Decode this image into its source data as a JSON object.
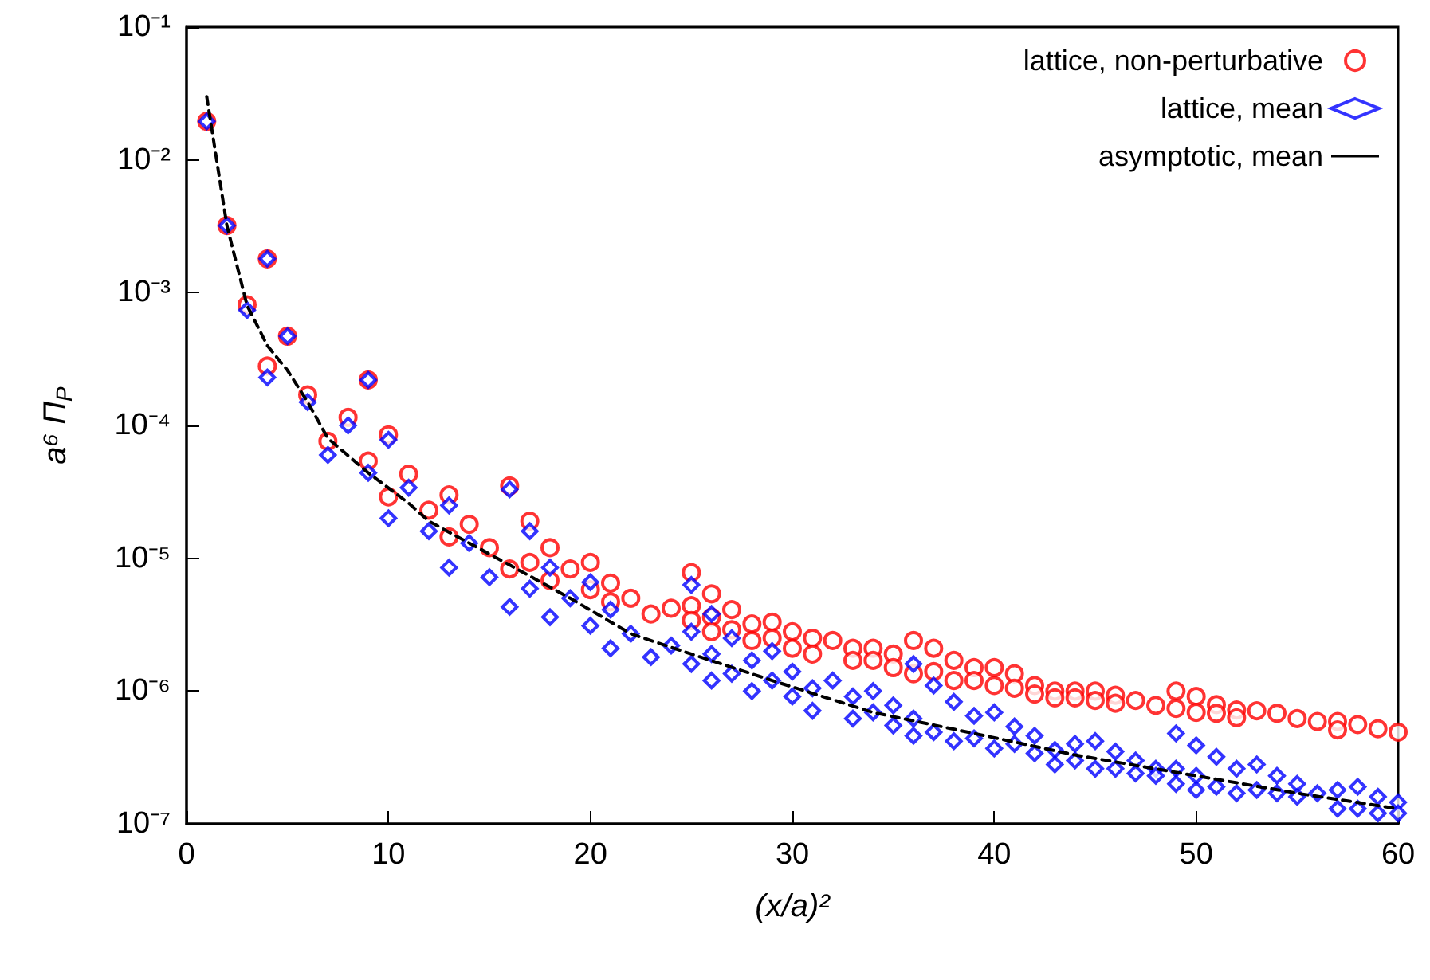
{
  "chart_data": {
    "type": "scatter",
    "xlabel": "(x/a)²",
    "ylabel": "a⁶ Π$_{P}$",
    "xlim": [
      0,
      60
    ],
    "xticks": [
      0,
      10,
      20,
      30,
      40,
      50,
      60
    ],
    "ylim": [
      1e-07,
      0.1
    ],
    "yticks": [
      {
        "value": 1e-07,
        "label": "10⁻⁷"
      },
      {
        "value": 1e-06,
        "label": "10⁻⁶"
      },
      {
        "value": 1e-05,
        "label": "10⁻⁵"
      },
      {
        "value": 0.0001,
        "label": "10⁻⁴"
      },
      {
        "value": 0.001,
        "label": "10⁻³"
      },
      {
        "value": 0.01,
        "label": "10⁻²"
      },
      {
        "value": 0.1,
        "label": "10⁻¹"
      }
    ],
    "log": "y",
    "grid": false,
    "legend": "top right",
    "series": [
      {
        "name": "lattice, non-perturbative",
        "marker": "circle",
        "color": "#ff0000",
        "x": [
          1,
          2,
          3,
          4,
          4,
          5,
          6,
          7,
          8,
          9,
          9,
          10,
          10,
          11,
          12,
          13,
          13,
          14,
          15,
          16,
          16,
          17,
          17,
          18,
          18,
          19,
          20,
          20,
          21,
          21,
          22,
          23,
          24,
          25,
          25,
          25,
          26,
          26,
          26,
          27,
          27,
          28,
          28,
          29,
          29,
          30,
          30,
          31,
          31,
          32,
          33,
          33,
          34,
          34,
          35,
          35,
          36,
          36,
          37,
          37,
          38,
          38,
          39,
          39,
          40,
          40,
          41,
          41,
          42,
          42,
          43,
          43,
          44,
          44,
          45,
          45,
          46,
          46,
          47,
          48,
          49,
          49,
          50,
          50,
          51,
          51,
          52,
          52,
          53,
          54,
          55,
          56,
          57,
          57,
          58,
          59,
          60
        ],
        "values": [
          0.0195,
          0.0032,
          0.00081,
          0.0018,
          0.00028,
          0.00047,
          0.00017,
          7.6e-05,
          0.000115,
          0.00022,
          5.4e-05,
          8.5e-05,
          2.9e-05,
          4.3e-05,
          2.3e-05,
          3e-05,
          1.45e-05,
          1.8e-05,
          1.2e-05,
          3.5e-05,
          8.3e-06,
          1.9e-05,
          9.3e-06,
          1.2e-05,
          6.8e-06,
          8.3e-06,
          9.3e-06,
          5.8e-06,
          6.5e-06,
          4.7e-06,
          5e-06,
          3.8e-06,
          4.2e-06,
          7.8e-06,
          4.4e-06,
          3.4e-06,
          5.4e-06,
          3.6e-06,
          2.8e-06,
          4.1e-06,
          2.9e-06,
          3.2e-06,
          2.4e-06,
          3.3e-06,
          2.5e-06,
          2.8e-06,
          2.1e-06,
          2.5e-06,
          1.9e-06,
          2.4e-06,
          2.1e-06,
          1.7e-06,
          2.1e-06,
          1.7e-06,
          1.9e-06,
          1.5e-06,
          2.4e-06,
          1.35e-06,
          2.1e-06,
          1.4e-06,
          1.7e-06,
          1.2e-06,
          1.5e-06,
          1.2e-06,
          1.5e-06,
          1.1e-06,
          1.35e-06,
          1.05e-06,
          1.1e-06,
          9.5e-07,
          1e-06,
          8.9e-07,
          1e-06,
          8.9e-07,
          1e-06,
          8.5e-07,
          9.3e-07,
          8.1e-07,
          8.5e-07,
          7.8e-07,
          1e-06,
          7.4e-07,
          9.1e-07,
          6.9e-07,
          7.9e-07,
          6.8e-07,
          7.2e-07,
          6.3e-07,
          7.1e-07,
          6.8e-07,
          6.2e-07,
          5.9e-07,
          5.9e-07,
          5.1e-07,
          5.6e-07,
          5.2e-07,
          4.9e-07
        ]
      },
      {
        "name": "lattice, mean",
        "marker": "diamond",
        "color": "#0000ff",
        "x": [
          1,
          2,
          3,
          4,
          4,
          5,
          6,
          7,
          8,
          9,
          9,
          10,
          10,
          11,
          12,
          13,
          13,
          14,
          15,
          16,
          16,
          17,
          17,
          18,
          18,
          19,
          20,
          20,
          21,
          21,
          22,
          23,
          24,
          25,
          25,
          25,
          26,
          26,
          26,
          27,
          27,
          28,
          28,
          29,
          29,
          30,
          30,
          31,
          31,
          32,
          33,
          33,
          34,
          34,
          35,
          35,
          36,
          36,
          36,
          37,
          37,
          38,
          38,
          39,
          39,
          40,
          40,
          41,
          41,
          42,
          42,
          43,
          43,
          44,
          44,
          45,
          45,
          46,
          46,
          47,
          47,
          48,
          48,
          49,
          49,
          49,
          50,
          50,
          50,
          51,
          51,
          52,
          52,
          53,
          53,
          54,
          54,
          55,
          55,
          56,
          57,
          57,
          58,
          58,
          59,
          59,
          60,
          60
        ],
        "values": [
          0.0195,
          0.0032,
          0.00074,
          0.0018,
          0.00023,
          0.00047,
          0.00015,
          6e-05,
          0.0001,
          0.00022,
          4.4e-05,
          7.8e-05,
          2e-05,
          3.4e-05,
          1.6e-05,
          2.5e-05,
          8.5e-06,
          1.3e-05,
          7.2e-06,
          3.3e-05,
          4.3e-06,
          1.6e-05,
          5.9e-06,
          8.5e-06,
          3.6e-06,
          5e-06,
          6.6e-06,
          3.1e-06,
          4.1e-06,
          2.1e-06,
          2.7e-06,
          1.8e-06,
          2.2e-06,
          6.3e-06,
          2.8e-06,
          1.6e-06,
          3.8e-06,
          1.9e-06,
          1.2e-06,
          2.5e-06,
          1.35e-06,
          1.7e-06,
          1e-06,
          2e-06,
          1.2e-06,
          1.4e-06,
          9.1e-07,
          1.05e-06,
          7.1e-07,
          1.2e-06,
          9.1e-07,
          6.2e-07,
          1e-06,
          6.9e-07,
          7.8e-07,
          5.5e-07,
          1.6e-06,
          6.2e-07,
          4.6e-07,
          1.1e-06,
          4.9e-07,
          8.3e-07,
          4.2e-07,
          6.5e-07,
          4.4e-07,
          6.9e-07,
          3.7e-07,
          5.4e-07,
          4e-07,
          4.6e-07,
          3.4e-07,
          3.6e-07,
          2.8e-07,
          4e-07,
          3e-07,
          4.2e-07,
          2.6e-07,
          3.5e-07,
          2.6e-07,
          3e-07,
          2.4e-07,
          2.6e-07,
          2.3e-07,
          4.8e-07,
          2.6e-07,
          2e-07,
          3.9e-07,
          2.3e-07,
          1.8e-07,
          3.2e-07,
          1.9e-07,
          2.6e-07,
          1.7e-07,
          2.8e-07,
          1.8e-07,
          2.3e-07,
          1.7e-07,
          2e-07,
          1.6e-07,
          1.7e-07,
          1.8e-07,
          1.3e-07,
          1.9e-07,
          1.3e-07,
          1.6e-07,
          1.2e-07,
          1.45e-07,
          1.2e-07
        ]
      },
      {
        "name": "asymptotic, mean",
        "type": "line",
        "marker": "none",
        "line_style": "dashed",
        "color": "#000000",
        "x": [
          1,
          2,
          3,
          4,
          5,
          6,
          7,
          9,
          11,
          12,
          16,
          19,
          22,
          25,
          29,
          34,
          39,
          44,
          50,
          55,
          60
        ],
        "values": [
          0.03,
          0.0032,
          0.0008,
          0.0004,
          0.00026,
          0.00015,
          8e-05,
          4.4e-05,
          2.6e-05,
          1.9e-05,
          8.9e-06,
          5e-06,
          2.7e-06,
          1.9e-06,
          1.2e-06,
          6.9e-07,
          4.8e-07,
          3.3e-07,
          2.3e-07,
          1.7e-07,
          1.3e-07
        ]
      }
    ]
  }
}
